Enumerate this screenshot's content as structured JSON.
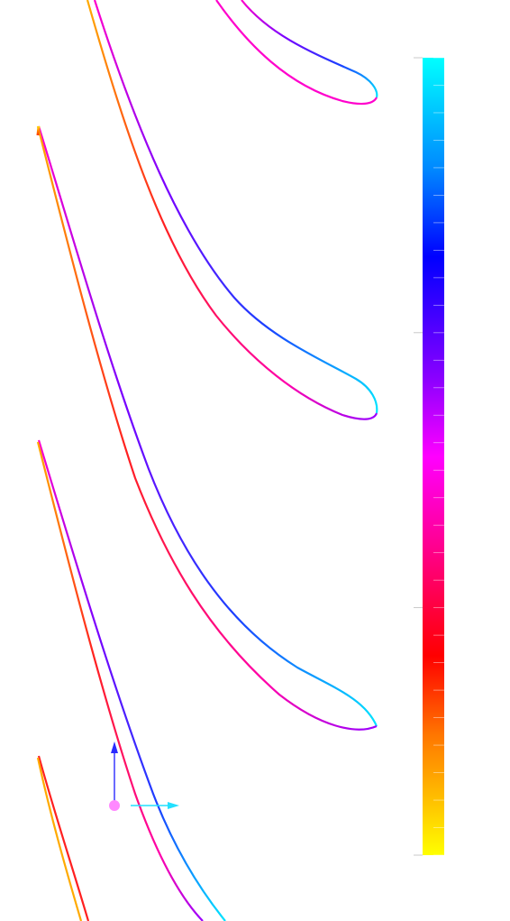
{
  "scene": {
    "description_level": "none",
    "blade_count_visible": 4
  },
  "colorbar": {
    "colors_top_to_bottom": [
      "#00ffff",
      "#0077ff",
      "#0000ff",
      "#8800ff",
      "#ff00ff",
      "#ff0088",
      "#ff0000",
      "#ff8800",
      "#ffff00"
    ],
    "labels": []
  },
  "axes_triad": {
    "axes": [
      {
        "name": "vertical-axis",
        "color": "#2a2aff"
      },
      {
        "name": "horizontal-axis",
        "color": "#22e0ff"
      }
    ],
    "origin_color": "#ff88ff"
  },
  "palette": {
    "background": "#ffffff"
  }
}
